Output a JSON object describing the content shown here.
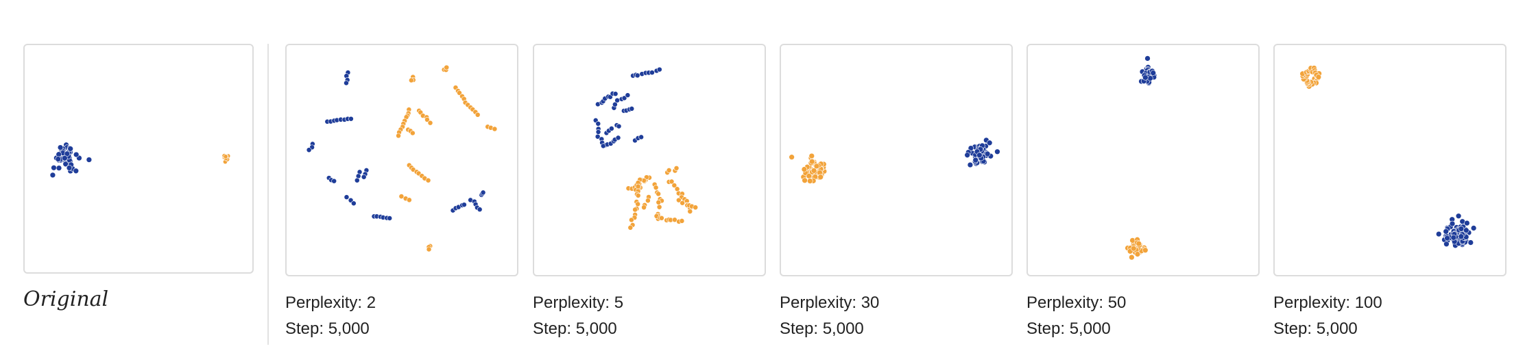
{
  "colors": {
    "blue": "#1f3d99",
    "orange": "#f2a33a",
    "border": "#dcdcdc"
  },
  "original": {
    "label": "Original",
    "clusters": [
      "blue",
      "orange"
    ]
  },
  "panels": [
    {
      "perplexity_label": "Perplexity: 2",
      "step_label": "Step: 5,000"
    },
    {
      "perplexity_label": "Perplexity: 5",
      "step_label": "Step: 5,000"
    },
    {
      "perplexity_label": "Perplexity: 30",
      "step_label": "Step: 5,000"
    },
    {
      "perplexity_label": "Perplexity: 50",
      "step_label": "Step: 5,000"
    },
    {
      "perplexity_label": "Perplexity: 100",
      "step_label": "Step: 5,000"
    }
  ]
}
